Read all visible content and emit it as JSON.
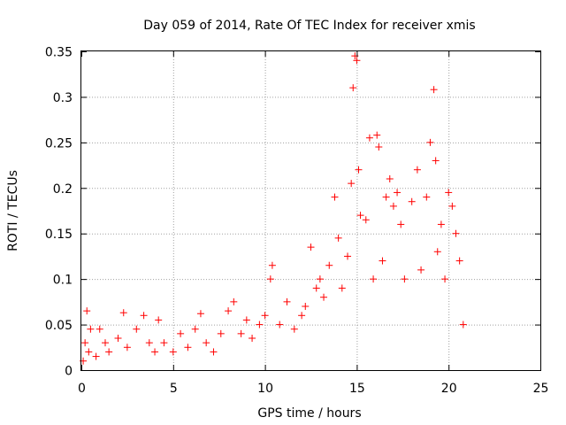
{
  "chart_data": {
    "type": "scatter",
    "title": "Day 059 of 2014, Rate Of TEC Index for receiver xmis",
    "xlabel": "GPS time / hours",
    "ylabel": "ROTI / TECUs",
    "xlim": [
      0,
      25
    ],
    "ylim": [
      0,
      0.35
    ],
    "x_ticks": [
      "0",
      "5",
      "10",
      "15",
      "20",
      "25"
    ],
    "y_ticks": [
      "0",
      "0.05",
      "0.1",
      "0.15",
      "0.2",
      "0.25",
      "0.3",
      "0.35"
    ],
    "grid": true,
    "marker": "+",
    "series": [
      {
        "name": "xmis",
        "color": "#ff0000",
        "points": [
          [
            0.1,
            0.01
          ],
          [
            0.2,
            0.03
          ],
          [
            0.3,
            0.065
          ],
          [
            0.4,
            0.02
          ],
          [
            0.5,
            0.045
          ],
          [
            0.8,
            0.015
          ],
          [
            1.0,
            0.045
          ],
          [
            1.3,
            0.03
          ],
          [
            1.5,
            0.02
          ],
          [
            2.0,
            0.035
          ],
          [
            2.3,
            0.063
          ],
          [
            2.5,
            0.025
          ],
          [
            3.0,
            0.045
          ],
          [
            3.4,
            0.06
          ],
          [
            3.7,
            0.03
          ],
          [
            4.0,
            0.02
          ],
          [
            4.2,
            0.055
          ],
          [
            4.5,
            0.03
          ],
          [
            5.0,
            0.02
          ],
          [
            5.4,
            0.04
          ],
          [
            5.8,
            0.025
          ],
          [
            6.2,
            0.045
          ],
          [
            6.5,
            0.062
          ],
          [
            6.8,
            0.03
          ],
          [
            7.2,
            0.02
          ],
          [
            7.6,
            0.04
          ],
          [
            8.0,
            0.065
          ],
          [
            8.3,
            0.075
          ],
          [
            8.7,
            0.04
          ],
          [
            9.0,
            0.055
          ],
          [
            9.3,
            0.035
          ],
          [
            9.7,
            0.05
          ],
          [
            10.0,
            0.06
          ],
          [
            10.3,
            0.1
          ],
          [
            10.4,
            0.115
          ],
          [
            10.8,
            0.05
          ],
          [
            11.2,
            0.075
          ],
          [
            11.6,
            0.045
          ],
          [
            12.0,
            0.06
          ],
          [
            12.2,
            0.07
          ],
          [
            12.5,
            0.135
          ],
          [
            12.8,
            0.09
          ],
          [
            13.0,
            0.1
          ],
          [
            13.2,
            0.08
          ],
          [
            13.5,
            0.115
          ],
          [
            13.8,
            0.19
          ],
          [
            14.0,
            0.145
          ],
          [
            14.2,
            0.09
          ],
          [
            14.5,
            0.125
          ],
          [
            14.7,
            0.205
          ],
          [
            14.8,
            0.31
          ],
          [
            14.9,
            0.345
          ],
          [
            15.0,
            0.34
          ],
          [
            15.1,
            0.22
          ],
          [
            15.2,
            0.17
          ],
          [
            15.5,
            0.165
          ],
          [
            15.7,
            0.255
          ],
          [
            15.9,
            0.1
          ],
          [
            16.1,
            0.258
          ],
          [
            16.2,
            0.245
          ],
          [
            16.4,
            0.12
          ],
          [
            16.6,
            0.19
          ],
          [
            16.8,
            0.21
          ],
          [
            17.0,
            0.18
          ],
          [
            17.2,
            0.195
          ],
          [
            17.4,
            0.16
          ],
          [
            17.6,
            0.1
          ],
          [
            18.0,
            0.185
          ],
          [
            18.3,
            0.22
          ],
          [
            18.5,
            0.11
          ],
          [
            18.8,
            0.19
          ],
          [
            19.0,
            0.25
          ],
          [
            19.2,
            0.308
          ],
          [
            19.3,
            0.23
          ],
          [
            19.4,
            0.13
          ],
          [
            19.6,
            0.16
          ],
          [
            19.8,
            0.1
          ],
          [
            20.0,
            0.195
          ],
          [
            20.2,
            0.18
          ],
          [
            20.4,
            0.15
          ],
          [
            20.6,
            0.12
          ],
          [
            20.8,
            0.05
          ]
        ]
      }
    ]
  }
}
